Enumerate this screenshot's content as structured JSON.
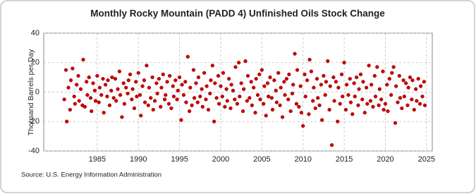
{
  "chart_data": {
    "type": "scatter",
    "title": "Monthly Rocky Mountain (PADD 4) Unfinished Oils Stock Change",
    "y_label": "Thousand Barrels per Day",
    "source": "Source: U.S. Energy Information Administration",
    "color": "#cc0000",
    "grid": true,
    "xlim": [
      1978.5,
      2025.7
    ],
    "xticks": [
      1985,
      1990,
      1995,
      2000,
      2005,
      2010,
      2015,
      2020,
      2025
    ],
    "ylim": [
      -40,
      40
    ],
    "yticks": [
      -40,
      -20,
      0,
      20,
      40
    ],
    "x": [
      1981.0,
      1981.2,
      1981.3,
      1981.5,
      1981.7,
      1981.8,
      1982.0,
      1982.2,
      1982.3,
      1982.5,
      1982.7,
      1982.8,
      1983.0,
      1983.2,
      1983.3,
      1983.5,
      1983.7,
      1983.8,
      1984.0,
      1984.2,
      1984.3,
      1984.5,
      1984.7,
      1984.8,
      1985.0,
      1985.2,
      1985.3,
      1985.5,
      1985.7,
      1985.8,
      1986.0,
      1986.2,
      1986.3,
      1986.5,
      1986.7,
      1986.8,
      1987.0,
      1987.2,
      1987.3,
      1987.5,
      1987.7,
      1987.8,
      1988.0,
      1988.2,
      1988.3,
      1988.5,
      1988.7,
      1988.8,
      1989.0,
      1989.2,
      1989.3,
      1989.5,
      1989.7,
      1989.8,
      1990.0,
      1990.2,
      1990.3,
      1990.5,
      1990.7,
      1990.8,
      1991.0,
      1991.2,
      1991.3,
      1991.5,
      1991.7,
      1991.8,
      1992.0,
      1992.2,
      1992.3,
      1992.5,
      1992.7,
      1992.8,
      1993.0,
      1993.2,
      1993.3,
      1993.5,
      1993.7,
      1993.8,
      1994.0,
      1994.2,
      1994.3,
      1994.5,
      1994.7,
      1994.8,
      1995.0,
      1995.2,
      1995.3,
      1995.5,
      1995.7,
      1995.8,
      1996.0,
      1996.2,
      1996.3,
      1996.5,
      1996.7,
      1996.8,
      1997.0,
      1997.2,
      1997.3,
      1997.5,
      1997.7,
      1997.8,
      1998.0,
      1998.2,
      1998.3,
      1998.5,
      1998.7,
      1998.8,
      1999.0,
      1999.2,
      1999.3,
      1999.5,
      1999.7,
      1999.8,
      2000.0,
      2000.2,
      2000.3,
      2000.5,
      2000.7,
      2000.8,
      2001.0,
      2001.2,
      2001.3,
      2001.5,
      2001.7,
      2001.8,
      2002.0,
      2002.2,
      2002.3,
      2002.5,
      2002.7,
      2002.8,
      2003.0,
      2003.2,
      2003.3,
      2003.5,
      2003.7,
      2003.8,
      2004.0,
      2004.2,
      2004.3,
      2004.5,
      2004.7,
      2004.8,
      2005.0,
      2005.2,
      2005.3,
      2005.5,
      2005.7,
      2005.8,
      2006.0,
      2006.2,
      2006.3,
      2006.5,
      2006.7,
      2006.8,
      2007.0,
      2007.2,
      2007.3,
      2007.5,
      2007.7,
      2007.8,
      2008.0,
      2008.2,
      2008.3,
      2008.5,
      2008.7,
      2008.8,
      2009.0,
      2009.2,
      2009.3,
      2009.5,
      2009.7,
      2009.8,
      2010.0,
      2010.2,
      2010.3,
      2010.5,
      2010.7,
      2010.8,
      2011.0,
      2011.2,
      2011.3,
      2011.5,
      2011.7,
      2011.8,
      2012.0,
      2012.2,
      2012.3,
      2012.5,
      2012.7,
      2012.8,
      2013.0,
      2013.2,
      2013.3,
      2013.5,
      2013.7,
      2013.8,
      2014.0,
      2014.2,
      2014.3,
      2014.5,
      2014.7,
      2014.8,
      2015.0,
      2015.2,
      2015.3,
      2015.5,
      2015.7,
      2015.8,
      2016.0,
      2016.2,
      2016.3,
      2016.5,
      2016.7,
      2016.8,
      2017.0,
      2017.2,
      2017.3,
      2017.5,
      2017.7,
      2017.8,
      2018.0,
      2018.2,
      2018.3,
      2018.5,
      2018.7,
      2018.8,
      2019.0,
      2019.2,
      2019.3,
      2019.5,
      2019.7,
      2019.8,
      2020.0,
      2020.2,
      2020.3,
      2020.5,
      2020.7,
      2020.8,
      2021.0,
      2021.2,
      2021.3,
      2021.5,
      2021.7,
      2021.8,
      2022.0,
      2022.2,
      2022.3,
      2022.5,
      2022.7,
      2022.8,
      2023.0,
      2023.2,
      2023.3,
      2023.5,
      2023.7,
      2023.8,
      2024.0,
      2024.2,
      2024.3,
      2024.5,
      2024.7,
      2024.8
    ],
    "values": [
      -5,
      15,
      -20,
      3,
      -12,
      8,
      16,
      -3,
      -8,
      5,
      11,
      -6,
      2,
      -9,
      22,
      -10,
      7,
      -2,
      10,
      -4,
      -13,
      6,
      1,
      -6,
      11,
      -7,
      3,
      -2,
      9,
      -14,
      5,
      -3,
      8,
      -9,
      1,
      10,
      -4,
      9,
      -6,
      2,
      14,
      -2,
      -17,
      6,
      -8,
      3,
      -1,
      8,
      12,
      -5,
      2,
      -11,
      7,
      -3,
      13,
      -2,
      -16,
      4,
      8,
      -7,
      18,
      -9,
      3,
      -4,
      10,
      -12,
      -6,
      6,
      -1,
      9,
      -10,
      3,
      12,
      -5,
      -2,
      7,
      -8,
      11,
      -11,
      4,
      -3,
      8,
      -5,
      1,
      10,
      -19,
      5,
      -2,
      7,
      -7,
      24,
      -13,
      3,
      -9,
      15,
      -4,
      6,
      -7,
      10,
      -3,
      2,
      -10,
      13,
      -5,
      4,
      -12,
      -1,
      8,
      18,
      -20,
      6,
      -4,
      11,
      -8,
      4,
      -3,
      13,
      -10,
      2,
      -6,
      9,
      -11,
      5,
      1,
      -5,
      17,
      -8,
      20,
      -3,
      6,
      -13,
      2,
      21,
      -6,
      11,
      -4,
      7,
      -9,
      3,
      -14,
      9,
      -2,
      12,
      -5,
      15,
      -8,
      4,
      -16,
      6,
      -3,
      10,
      -4,
      -12,
      8,
      1,
      -7,
      13,
      -9,
      3,
      -17,
      7,
      -2,
      9,
      -5,
      12,
      -13,
      -1,
      5,
      26,
      -8,
      15,
      -10,
      4,
      -14,
      -23,
      12,
      -3,
      8,
      -15,
      22,
      14,
      -6,
      3,
      -11,
      9,
      -4,
      -9,
      5,
      -19,
      11,
      -2,
      7,
      21,
      -12,
      4,
      -36,
      10,
      -6,
      7,
      -20,
      3,
      -8,
      12,
      -3,
      20,
      -12,
      5,
      -2,
      9,
      -7,
      -15,
      6,
      -3,
      10,
      -9,
      2,
      12,
      -5,
      7,
      -14,
      3,
      -8,
      18,
      -6,
      5,
      -10,
      11,
      -3,
      17,
      -9,
      2,
      -5,
      14,
      -12,
      -8,
      5,
      -13,
      9,
      -2,
      13,
      17,
      -21,
      4,
      -7,
      11,
      -4,
      -11,
      8,
      -3,
      6,
      -9,
      3,
      10,
      -5,
      8,
      -12,
      2,
      -6,
      9,
      -8,
      4,
      -3,
      7,
      -9
    ]
  }
}
